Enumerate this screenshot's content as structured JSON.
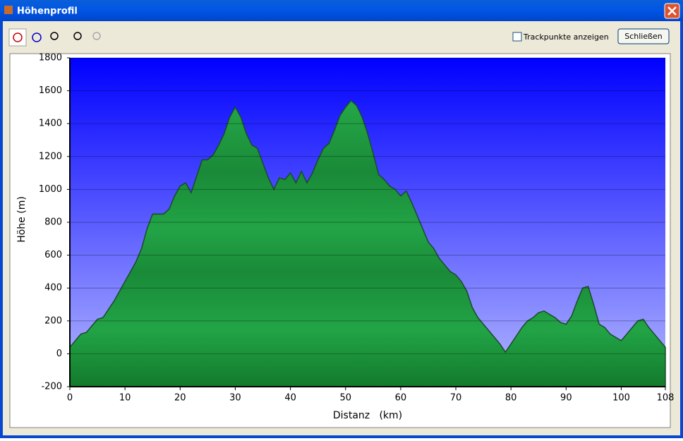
{
  "window": {
    "title": "Höhenprofil",
    "checkbox_label": "Trackpunkte anzeigen",
    "close_button": "Schließen"
  },
  "chart_data": {
    "type": "area",
    "x_label": "Distanz   (km)",
    "y_label": "Höhe (m)",
    "x": [
      0,
      1,
      2,
      3,
      4,
      5,
      6,
      8,
      10,
      12,
      13,
      14,
      15,
      17,
      18,
      19,
      20,
      21,
      22,
      23,
      24,
      25,
      26,
      27,
      28,
      29,
      30,
      31,
      32,
      33,
      34,
      35,
      36,
      37,
      38,
      39,
      40,
      41,
      42,
      43,
      44,
      45,
      46,
      47,
      48,
      49,
      50,
      51,
      52,
      53,
      54,
      55,
      56,
      57,
      58,
      59,
      60,
      61,
      62,
      63,
      64,
      65,
      66,
      67,
      68,
      69,
      70,
      71,
      72,
      73,
      74,
      75,
      76,
      77,
      78,
      79,
      80,
      81,
      82,
      83,
      84,
      85,
      86,
      87,
      88,
      89,
      90,
      91,
      92,
      93,
      94,
      95,
      96,
      97,
      98,
      99,
      100,
      101,
      102,
      103,
      104,
      105,
      106,
      107,
      108
    ],
    "values": [
      40,
      80,
      120,
      130,
      170,
      210,
      220,
      320,
      440,
      560,
      640,
      760,
      850,
      850,
      880,
      960,
      1020,
      1040,
      980,
      1080,
      1180,
      1180,
      1210,
      1270,
      1340,
      1440,
      1500,
      1440,
      1340,
      1270,
      1250,
      1160,
      1070,
      1000,
      1070,
      1060,
      1100,
      1040,
      1110,
      1040,
      1100,
      1180,
      1250,
      1280,
      1360,
      1450,
      1500,
      1540,
      1510,
      1440,
      1340,
      1220,
      1090,
      1060,
      1020,
      1000,
      960,
      990,
      920,
      840,
      760,
      680,
      640,
      580,
      540,
      500,
      480,
      440,
      380,
      280,
      220,
      180,
      140,
      100,
      60,
      10,
      60,
      110,
      160,
      200,
      220,
      250,
      260,
      240,
      220,
      190,
      180,
      230,
      320,
      400,
      410,
      300,
      180,
      160,
      120,
      100,
      80,
      120,
      160,
      200,
      210,
      160,
      120,
      80,
      40
    ],
    "color": "#1f9e40",
    "xlim": [
      0,
      108
    ],
    "ylim": [
      -200,
      1800
    ],
    "xticks": [
      0,
      10,
      20,
      30,
      40,
      50,
      60,
      70,
      80,
      90,
      100,
      108
    ],
    "yticks": [
      -200,
      0,
      200,
      400,
      600,
      800,
      1000,
      1200,
      1400,
      1600,
      1800
    ],
    "grid": true
  }
}
